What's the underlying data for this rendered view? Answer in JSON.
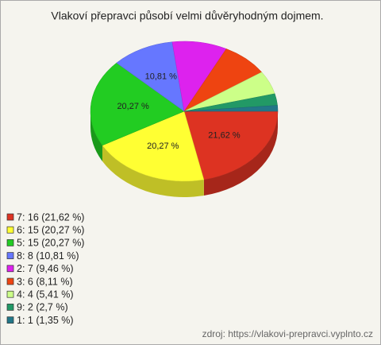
{
  "chart_data": {
    "type": "pie3d",
    "title": "Vlakoví přepravci působí velmi důvěryhodným dojmem.",
    "categories": [
      "7",
      "6",
      "5",
      "8",
      "2",
      "3",
      "4",
      "9",
      "1"
    ],
    "values": [
      16,
      15,
      15,
      8,
      7,
      6,
      4,
      2,
      1
    ],
    "value_labels": [
      "21,62 %",
      "20,27 %",
      "20,27 %",
      "10,81 %",
      null,
      null,
      null,
      null,
      null
    ],
    "legend": [
      "7: 16 (21,62 %)",
      "6: 15 (20,27 %)",
      "5: 15 (20,27 %)",
      "8: 8 (10,81 %)",
      "2: 7 (9,46 %)",
      "3: 6 (8,11 %)",
      "4: 4 (5,41 %)",
      "9: 2 (2,7 %)",
      "1: 1 (1,35 %)"
    ],
    "colors": [
      "#dd3322",
      "#ffff33",
      "#22cc22",
      "#6677ff",
      "#dd22ee",
      "#ee4411",
      "#ccff88",
      "#229966",
      "#227788"
    ],
    "source": "zdroj: https://vlakovi-prepravci.vyplnto.cz"
  }
}
